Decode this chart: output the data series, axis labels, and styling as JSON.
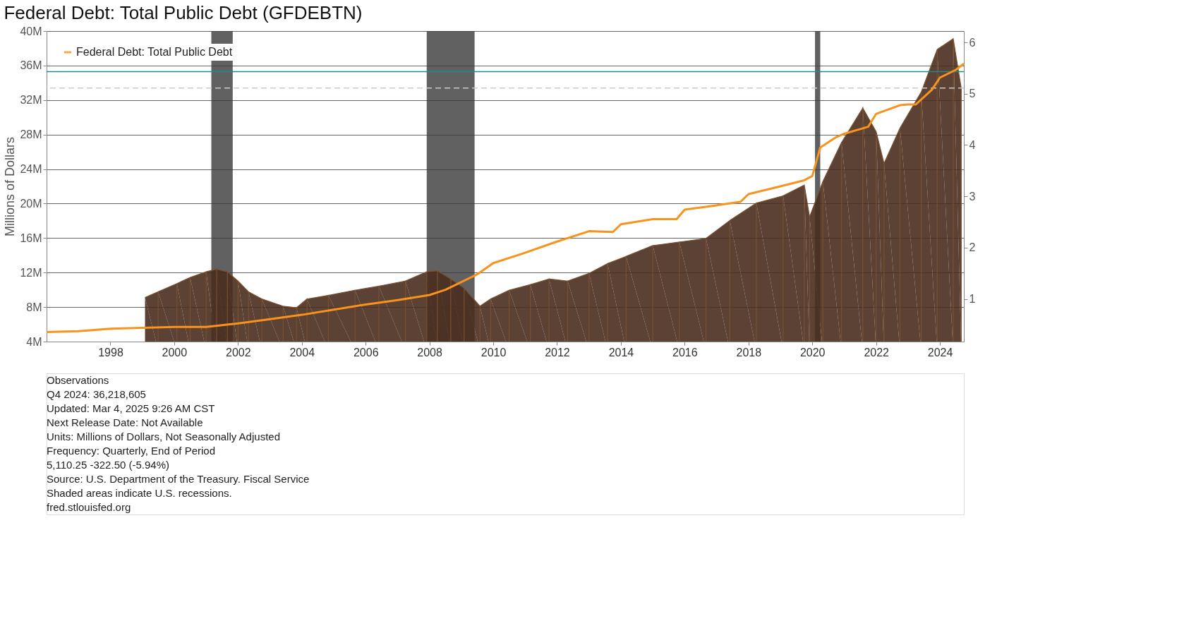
{
  "chart_data": {
    "type": "line",
    "title": "Federal Debt: Total Public Debt (GFDEBTN)",
    "ylabel": "Millions of Dollars",
    "annotations": [
      "Observations",
      "Q4 2024: 36,218,605",
      "Updated: Mar 4, 2025 9:26 AM CST",
      "Next Release Date: Not Available",
      "Units: Millions of Dollars, Not Seasonally Adjusted",
      "Frequency: Quarterly, End of Period",
      "5,110.25 -322.50 (-5.94%)",
      "Source: U.S. Department of the Treasury. Fiscal Service",
      "Shaded areas indicate U.S. recessions.",
      "fred.stlouisfed.org"
    ],
    "xlim": [
      "1996-01-01",
      "2024-10-01"
    ],
    "xticks": [
      {
        "value": "1998-01-01",
        "label": "1998"
      },
      {
        "value": "2000-01-01",
        "label": "2000"
      },
      {
        "value": "2002-01-01",
        "label": "2002"
      },
      {
        "value": "2004-01-01",
        "label": "2004"
      },
      {
        "value": "2006-01-01",
        "label": "2006"
      },
      {
        "value": "2008-01-01",
        "label": "2008"
      },
      {
        "value": "2010-01-01",
        "label": "2010"
      },
      {
        "value": "2012-01-01",
        "label": "2012"
      },
      {
        "value": "2014-01-01",
        "label": "2014"
      },
      {
        "value": "2016-01-01",
        "label": "2016"
      },
      {
        "value": "2018-01-01",
        "label": "2018"
      },
      {
        "value": "2020-01-01",
        "label": "2020"
      },
      {
        "value": "2022-01-01",
        "label": "2022"
      },
      {
        "value": "2024-01-01",
        "label": "2024"
      }
    ],
    "ylim": [
      4000000,
      40000000
    ],
    "yticks": [
      {
        "value": 4000000,
        "label": "4M"
      },
      {
        "value": 8000000,
        "label": "8M"
      },
      {
        "value": 12000000,
        "label": "12M"
      },
      {
        "value": 16000000,
        "label": "16M"
      },
      {
        "value": 20000000,
        "label": "20M"
      },
      {
        "value": 24000000,
        "label": "24M"
      },
      {
        "value": 28000000,
        "label": "28M"
      },
      {
        "value": 32000000,
        "label": "32M"
      },
      {
        "value": 36000000,
        "label": "36M"
      },
      {
        "value": 40000000,
        "label": "40M"
      }
    ],
    "y2lim": [
      0.17,
      6.22
    ],
    "y2ticks": [
      1,
      2,
      3,
      4,
      5,
      6
    ],
    "grid": "y",
    "legend": "top left",
    "marker": "none",
    "line_style": "solid",
    "bands": [
      {
        "axis": "x",
        "from": "2001-03-01",
        "to": "2001-11-01",
        "color": "#3a3a3a"
      },
      {
        "axis": "x",
        "from": "2007-12-01",
        "to": "2009-06-01",
        "color": "#3a3a3a"
      },
      {
        "axis": "x",
        "from": "2020-02-01",
        "to": "2020-04-01",
        "color": "#3a3a3a"
      }
    ],
    "ref_lines": [
      {
        "axis": "y2",
        "value": 5.11,
        "color": "#cccccc",
        "line_style": "dashed"
      },
      {
        "axis": "y2",
        "value": 5.43,
        "color": "#1f8a8a",
        "line_style": "solid"
      }
    ],
    "series": [
      {
        "type": "area",
        "axis": "y2",
        "color": "#4a2e1e",
        "x": [
          "1999-02",
          "1999-07",
          "2000-02",
          "2000-07",
          "2001-01",
          "2001-05",
          "2001-09",
          "2002-01",
          "2002-05",
          "2002-10",
          "2003-06",
          "2003-11",
          "2004-03",
          "2004-11",
          "2005-09",
          "2006-06",
          "2007-04",
          "2007-12",
          "2008-04",
          "2008-09",
          "2009-02",
          "2009-08",
          "2009-12",
          "2010-07",
          "2011-03",
          "2011-10",
          "2012-05",
          "2013-01",
          "2013-08",
          "2014-03",
          "2015-01",
          "2015-11",
          "2016-09",
          "2017-06",
          "2018-04",
          "2019-02",
          "2019-10",
          "2019-12",
          "2020-05",
          "2020-12",
          "2021-08",
          "2022-01",
          "2022-04",
          "2022-10",
          "2023-06",
          "2023-12",
          "2024-06",
          "2024-09"
        ],
        "values": [
          1.03,
          1.14,
          1.3,
          1.42,
          1.53,
          1.58,
          1.53,
          1.35,
          1.14,
          1.0,
          0.86,
          0.83,
          1.0,
          1.07,
          1.17,
          1.25,
          1.35,
          1.53,
          1.55,
          1.39,
          1.21,
          0.86,
          1.0,
          1.17,
          1.28,
          1.39,
          1.35,
          1.5,
          1.69,
          1.83,
          2.04,
          2.11,
          2.18,
          2.53,
          2.87,
          3.01,
          3.22,
          2.6,
          3.29,
          4.05,
          4.72,
          4.26,
          3.64,
          4.33,
          5.03,
          5.86,
          6.07,
          5.11
        ]
      },
      {
        "name": "Federal Debt: Total Public Debt",
        "color": "#f7931e",
        "x": [
          "1996-01-01",
          "1997-01-01",
          "1998-01-01",
          "1999-01-01",
          "2000-01-01",
          "2001-01-01",
          "2002-01-01",
          "2003-01-01",
          "2004-01-01",
          "2005-01-01",
          "2006-01-01",
          "2007-01-01",
          "2008-01-01",
          "2008-07-01",
          "2009-01-01",
          "2009-07-01",
          "2010-01-01",
          "2011-01-01",
          "2012-01-01",
          "2013-01-01",
          "2013-10-01",
          "2014-01-01",
          "2015-01-01",
          "2015-10-01",
          "2016-01-01",
          "2017-01-01",
          "2017-10-01",
          "2018-01-01",
          "2019-01-01",
          "2019-10-01",
          "2020-01-01",
          "2020-04-01",
          "2020-10-01",
          "2021-01-01",
          "2021-10-01",
          "2022-01-01",
          "2022-10-01",
          "2023-01-01",
          "2023-04-01",
          "2023-10-01",
          "2024-01-01",
          "2024-07-01",
          "2024-10-01"
        ],
        "values": [
          5100000,
          5200000,
          5500000,
          5600000,
          5700000,
          5700000,
          6100000,
          6600000,
          7100000,
          7700000,
          8300000,
          8800000,
          9400000,
          10000000,
          10900000,
          11800000,
          13100000,
          14300000,
          15600000,
          16800000,
          16700000,
          17600000,
          18200000,
          18200000,
          19300000,
          19800000,
          20200000,
          21100000,
          22000000,
          22700000,
          23200000,
          26500000,
          27700000,
          28100000,
          28900000,
          30400000,
          31400000,
          31500000,
          31500000,
          33200000,
          34600000,
          35500000,
          36218605
        ]
      }
    ]
  }
}
